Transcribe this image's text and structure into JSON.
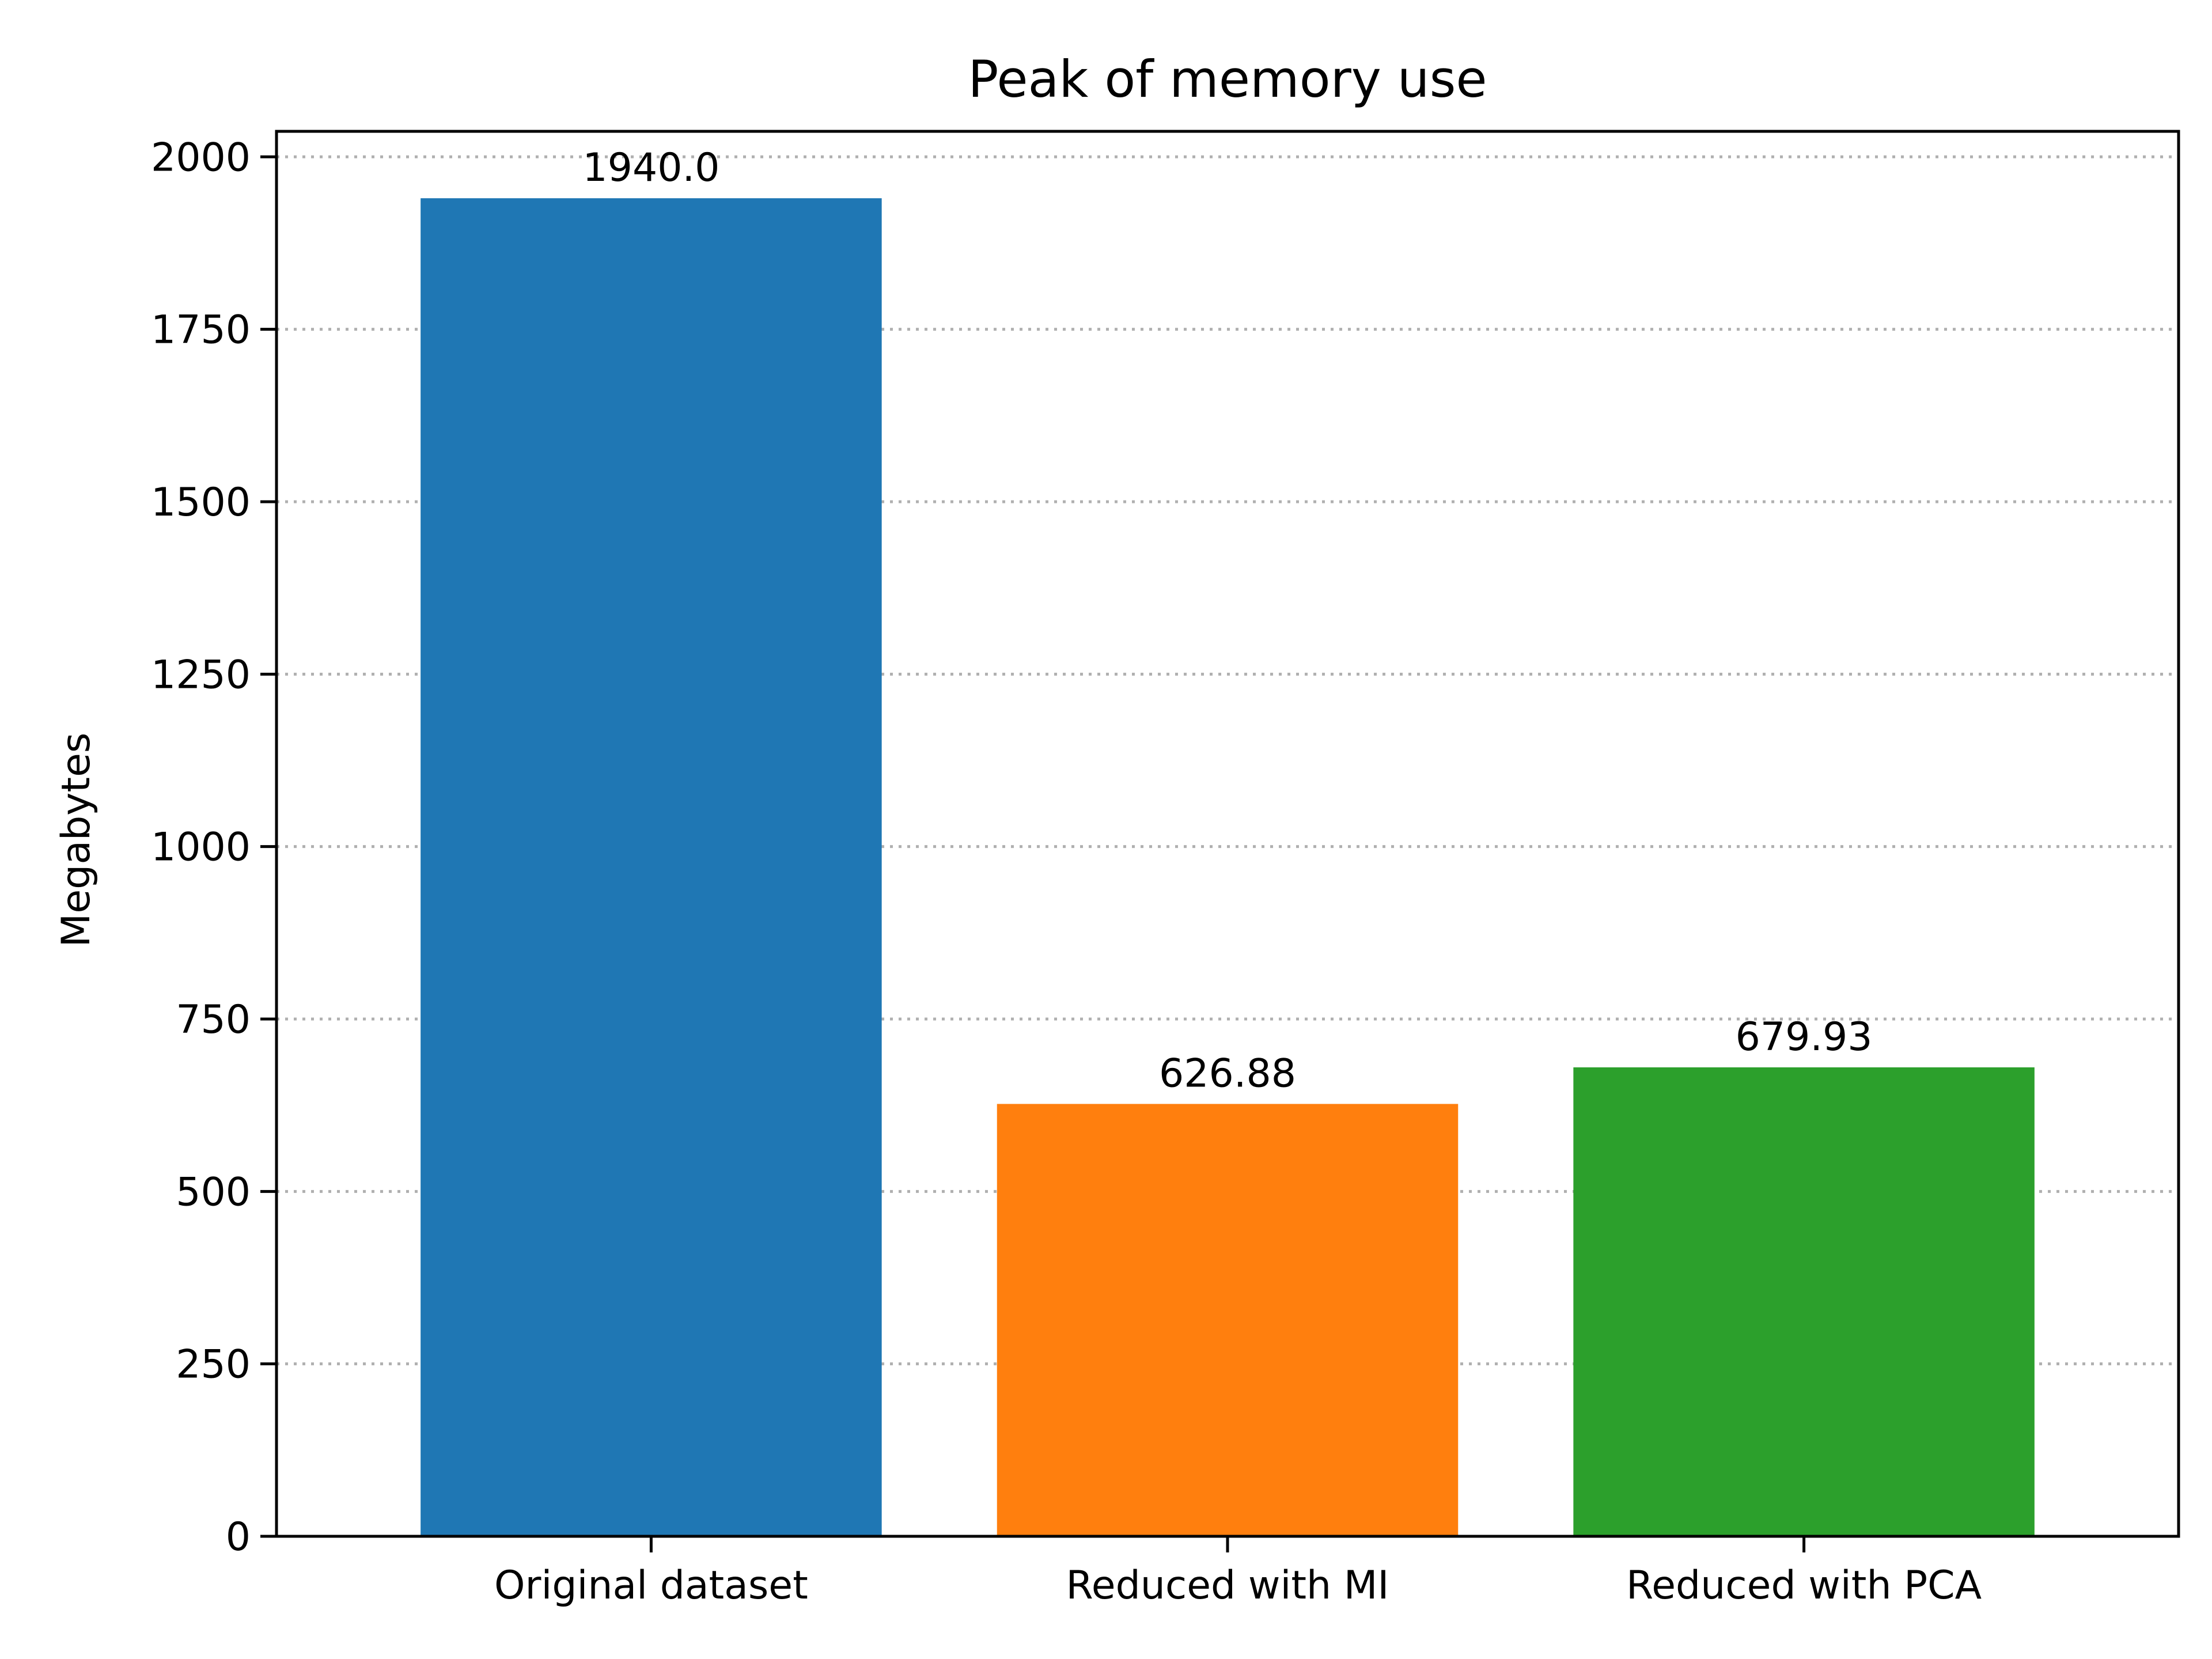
{
  "chart_data": {
    "type": "bar",
    "title": "Peak of memory use",
    "xlabel": "",
    "ylabel": "Megabytes",
    "categories": [
      "Original dataset",
      "Reduced with MI",
      "Reduced with PCA"
    ],
    "values": [
      1940.0,
      626.88,
      679.93
    ],
    "data_labels": [
      "1940.0",
      "626.88",
      "679.93"
    ],
    "colors": [
      "#1f77b4",
      "#ff7f0e",
      "#2ca02c"
    ],
    "ylim": [
      0,
      2037
    ],
    "yticks": [
      0,
      250,
      500,
      750,
      1000,
      1250,
      1500,
      1750,
      2000
    ],
    "grid": "y-dotted",
    "legend": "none"
  }
}
